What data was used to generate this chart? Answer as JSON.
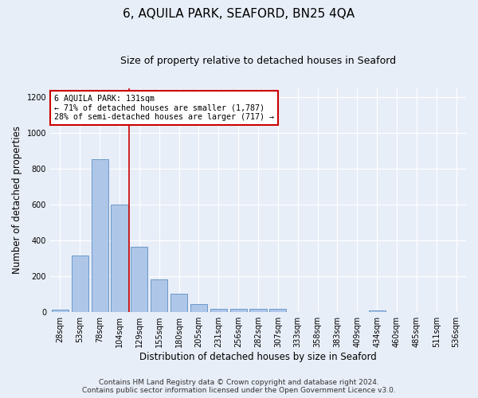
{
  "title": "6, AQUILA PARK, SEAFORD, BN25 4QA",
  "subtitle": "Size of property relative to detached houses in Seaford",
  "xlabel": "Distribution of detached houses by size in Seaford",
  "ylabel": "Number of detached properties",
  "categories": [
    "28sqm",
    "53sqm",
    "78sqm",
    "104sqm",
    "129sqm",
    "155sqm",
    "180sqm",
    "205sqm",
    "231sqm",
    "256sqm",
    "282sqm",
    "307sqm",
    "333sqm",
    "358sqm",
    "383sqm",
    "409sqm",
    "434sqm",
    "460sqm",
    "485sqm",
    "511sqm",
    "536sqm"
  ],
  "values": [
    15,
    315,
    855,
    600,
    365,
    185,
    105,
    45,
    20,
    18,
    18,
    20,
    0,
    0,
    0,
    0,
    10,
    0,
    0,
    0,
    0
  ],
  "bar_color": "#aec6e8",
  "bar_edge_color": "#5a8fc2",
  "vline_x_index": 3.5,
  "vline_color": "#cc0000",
  "annotation_text": "6 AQUILA PARK: 131sqm\n← 71% of detached houses are smaller (1,787)\n28% of semi-detached houses are larger (717) →",
  "annotation_box_color": "#ffffff",
  "annotation_box_edge": "#cc0000",
  "ylim": [
    0,
    1250
  ],
  "yticks": [
    0,
    200,
    400,
    600,
    800,
    1000,
    1200
  ],
  "footer_line1": "Contains HM Land Registry data © Crown copyright and database right 2024.",
  "footer_line2": "Contains public sector information licensed under the Open Government Licence v3.0.",
  "bg_color": "#e8eef8",
  "grid_color": "#ffffff",
  "title_fontsize": 11,
  "subtitle_fontsize": 9,
  "tick_fontsize": 7,
  "label_fontsize": 8.5,
  "footer_fontsize": 6.5
}
